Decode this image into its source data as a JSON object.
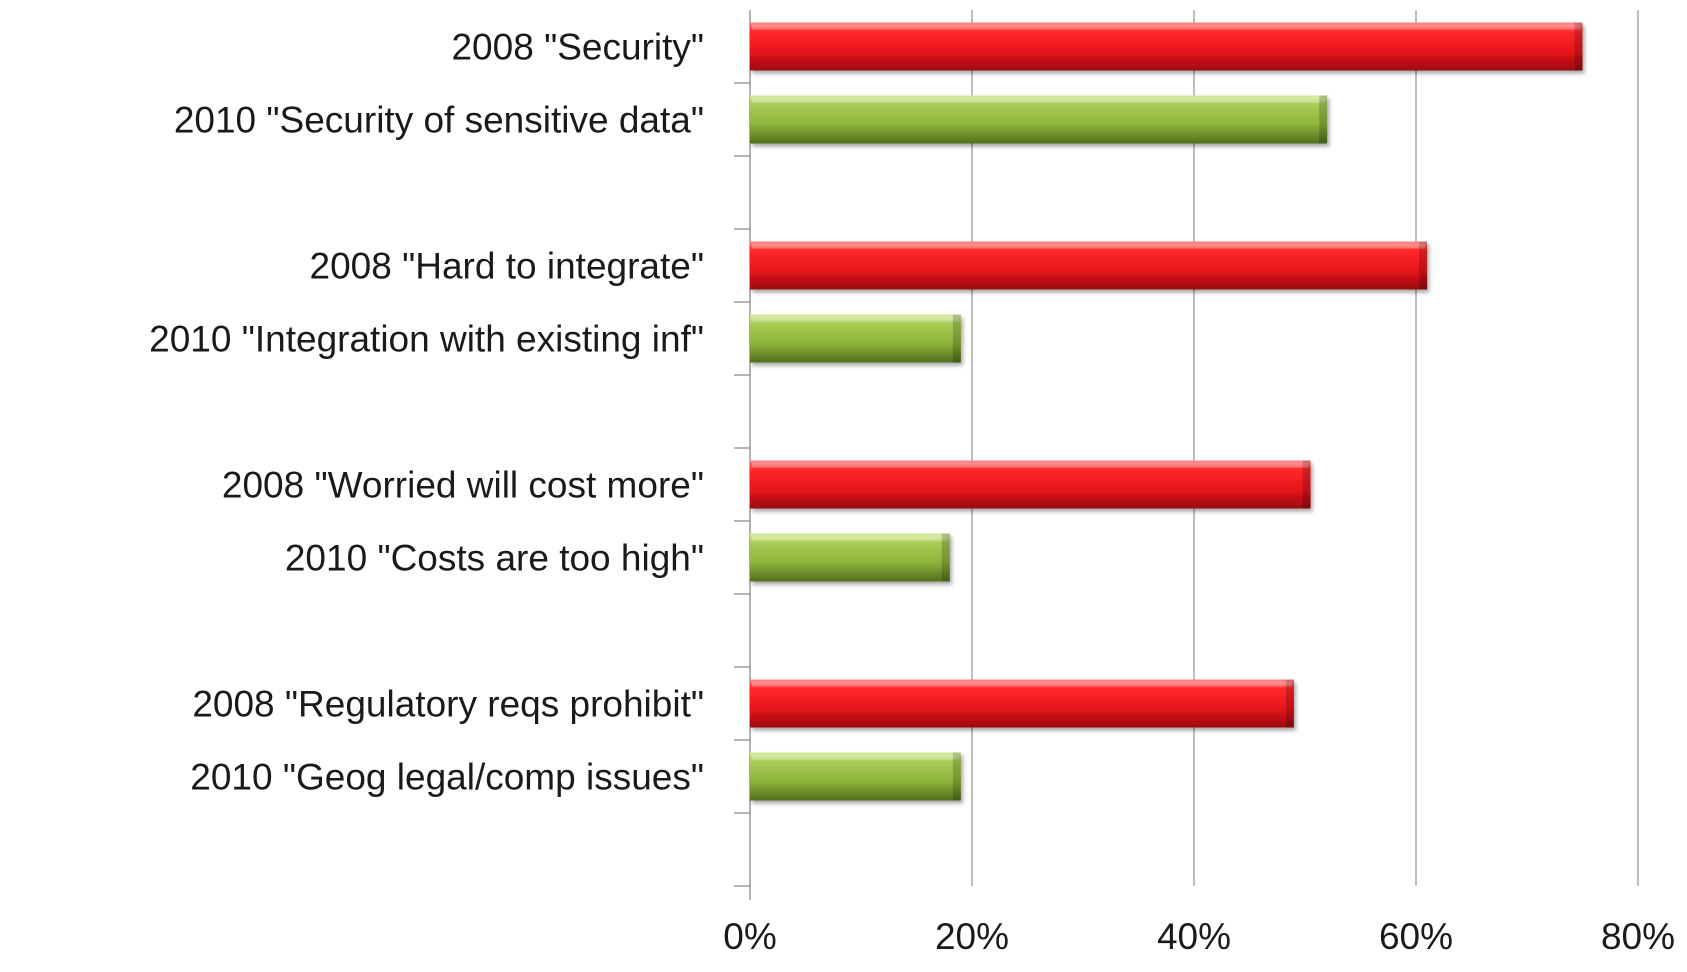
{
  "chart_data": {
    "type": "bar",
    "orientation": "horizontal",
    "title": "",
    "xlabel": "",
    "ylabel": "",
    "xlim": [
      0,
      80
    ],
    "x_unit": "%",
    "x_ticks": [
      "0%",
      "20%",
      "40%",
      "60%",
      "80%"
    ],
    "x_tick_values": [
      0,
      20,
      40,
      60,
      80
    ],
    "grid": "vertical",
    "legend": "none",
    "colors": {
      "2008": "#e8141b",
      "2010": "#8db43a",
      "grid": "#9a9a9a"
    },
    "bars": [
      {
        "label": "2008 \"Security\"",
        "year": "2008",
        "value": 75
      },
      {
        "label": "2010 \"Security of sensitive data\"",
        "year": "2010",
        "value": 52
      },
      {
        "label": "2008 \"Hard to integrate\"",
        "year": "2008",
        "value": 61
      },
      {
        "label": "2010 \"Integration with existing inf\"",
        "year": "2010",
        "value": 19
      },
      {
        "label": "2008 \"Worried will cost more\"",
        "year": "2008",
        "value": 50.5
      },
      {
        "label": "2010 \"Costs are too high\"",
        "year": "2010",
        "value": 18
      },
      {
        "label": "2008 \"Regulatory reqs prohibit\"",
        "year": "2008",
        "value": 49
      },
      {
        "label": "2010 \"Geog legal/comp issues\"",
        "year": "2010",
        "value": 19
      }
    ]
  }
}
